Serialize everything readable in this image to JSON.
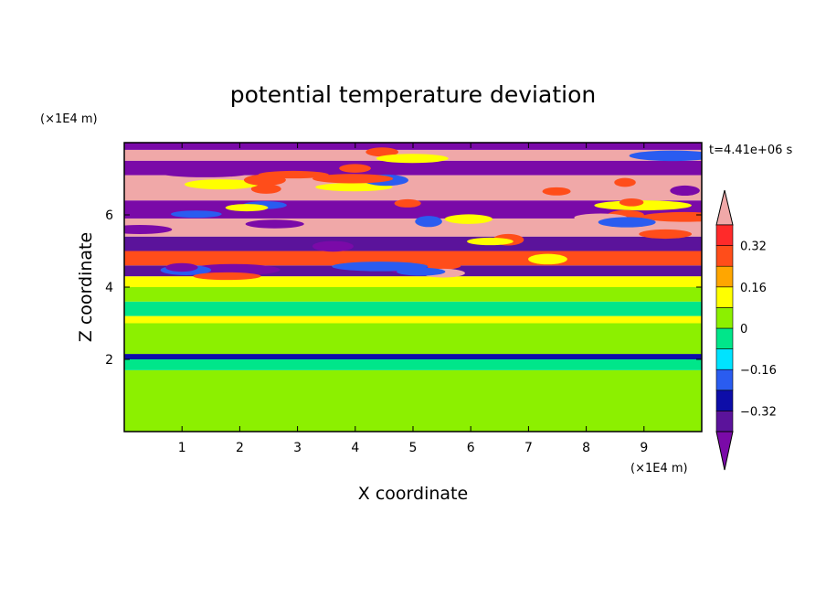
{
  "chart_data": {
    "type": "heatmap",
    "title": "potential temperature deviation",
    "xlabel": "X coordinate",
    "ylabel": "Z coordinate",
    "x_unit": "(×1E4 m)",
    "y_unit": "(×1E4 m)",
    "time_label": "t=4.41e+06 s",
    "xlim": [
      0,
      10
    ],
    "ylim": [
      0,
      8
    ],
    "x_ticks": [
      1,
      2,
      3,
      4,
      5,
      6,
      7,
      8,
      9
    ],
    "y_ticks": [
      2,
      4,
      6
    ],
    "colorbar": {
      "levels": [
        -0.4,
        -0.32,
        -0.24,
        -0.16,
        -0.08,
        0,
        0.08,
        0.16,
        0.24,
        0.32,
        0.4
      ],
      "tick_values": [
        -0.32,
        -0.16,
        0,
        0.16,
        0.32
      ],
      "tick_labels": [
        "−0.32",
        "−0.16",
        "0",
        "0.16",
        "0.32"
      ],
      "colors": [
        "#7a0aa8",
        "#5b139b",
        "#0d0da8",
        "#2a5cf0",
        "#00e3ff",
        "#00e68a",
        "#8cf000",
        "#ffff00",
        "#ffa600",
        "#ff4d1a",
        "#ff2a2a",
        "#f0a8a8"
      ]
    },
    "bands": [
      {
        "z": [
          0.0,
          1.7
        ],
        "value": 0.04
      },
      {
        "z": [
          1.7,
          2.0
        ],
        "value": -0.02
      },
      {
        "z": [
          2.0,
          2.15
        ],
        "value": -0.3
      },
      {
        "z": [
          2.15,
          3.0
        ],
        "value": 0.0
      },
      {
        "z": [
          3.0,
          3.2
        ],
        "value": 0.1
      },
      {
        "z": [
          3.2,
          3.6
        ],
        "value": -0.02
      },
      {
        "z": [
          3.6,
          4.0
        ],
        "value": 0.05
      },
      {
        "z": [
          4.0,
          4.3
        ],
        "value": 0.15
      },
      {
        "z": [
          4.3,
          4.6
        ],
        "value": -0.36
      },
      {
        "z": [
          4.6,
          5.0
        ],
        "value": 0.3
      },
      {
        "z": [
          5.0,
          5.4
        ],
        "value": -0.38
      },
      {
        "z": [
          5.4,
          5.9
        ],
        "value": 0.42
      },
      {
        "z": [
          5.9,
          6.4
        ],
        "value": -0.42
      },
      {
        "z": [
          6.4,
          7.1
        ],
        "value": 0.42
      },
      {
        "z": [
          7.1,
          7.5
        ],
        "value": -0.42
      },
      {
        "z": [
          7.5,
          7.8
        ],
        "value": 0.42
      },
      {
        "z": [
          7.8,
          8.0
        ],
        "value": -0.42
      }
    ]
  }
}
